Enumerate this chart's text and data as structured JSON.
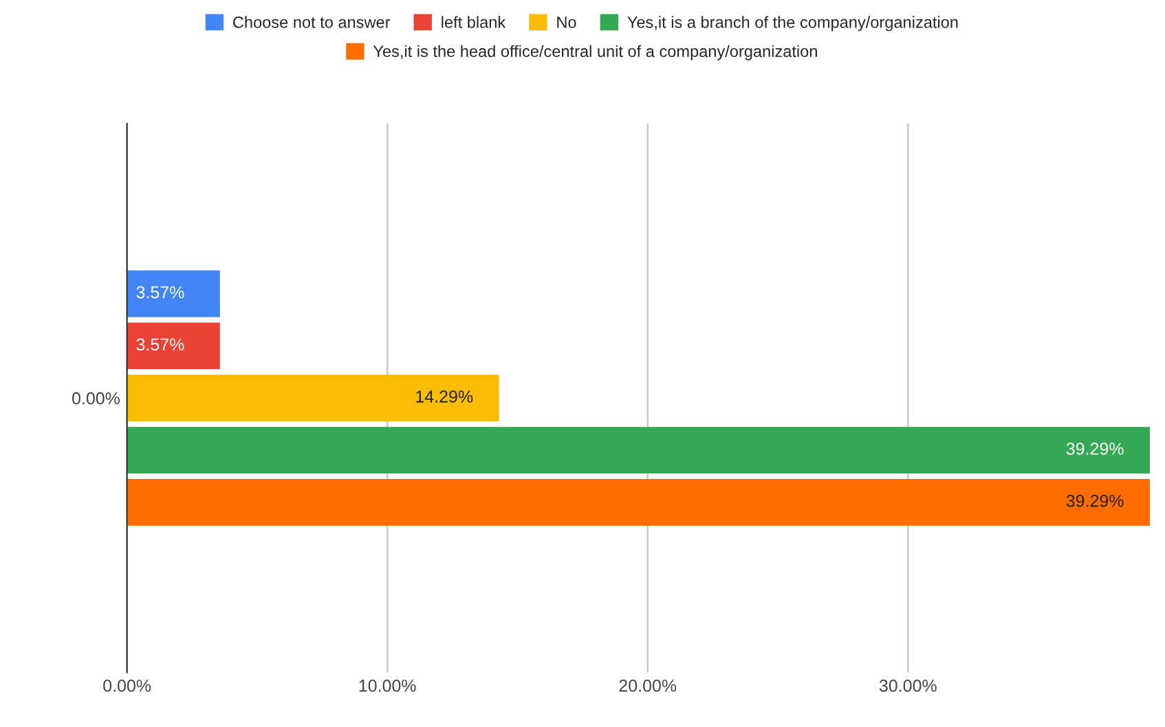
{
  "chart_data": {
    "type": "bar",
    "orientation": "horizontal",
    "categories": [
      "0.00%"
    ],
    "series": [
      {
        "name": "Choose not to answer",
        "color": "#4285f4",
        "values": [
          3.57
        ],
        "value_labels": [
          "3.57%"
        ]
      },
      {
        "name": "left blank",
        "color": "#ea4335",
        "values": [
          3.57
        ],
        "value_labels": [
          "3.57%"
        ]
      },
      {
        "name": "No",
        "color": "#fbbc04",
        "values": [
          14.29
        ],
        "value_labels": [
          "14.29%"
        ]
      },
      {
        "name": "Yes,it is a branch of the company/organization",
        "color": "#34a853",
        "values": [
          39.29
        ],
        "value_labels": [
          "39.29%"
        ]
      },
      {
        "name": "Yes,it is the head office/central unit of a company/organization",
        "color": "#ff6d01",
        "values": [
          39.29
        ],
        "value_labels": [
          "39.29%"
        ]
      }
    ],
    "xlim": [
      0,
      39.29
    ],
    "xticks": [
      {
        "value": 0,
        "label": "0.00%"
      },
      {
        "value": 10,
        "label": "10.00%"
      },
      {
        "value": 20,
        "label": "20.00%"
      },
      {
        "value": 30,
        "label": "30.00%"
      }
    ],
    "grid": "x",
    "legend": "top"
  }
}
